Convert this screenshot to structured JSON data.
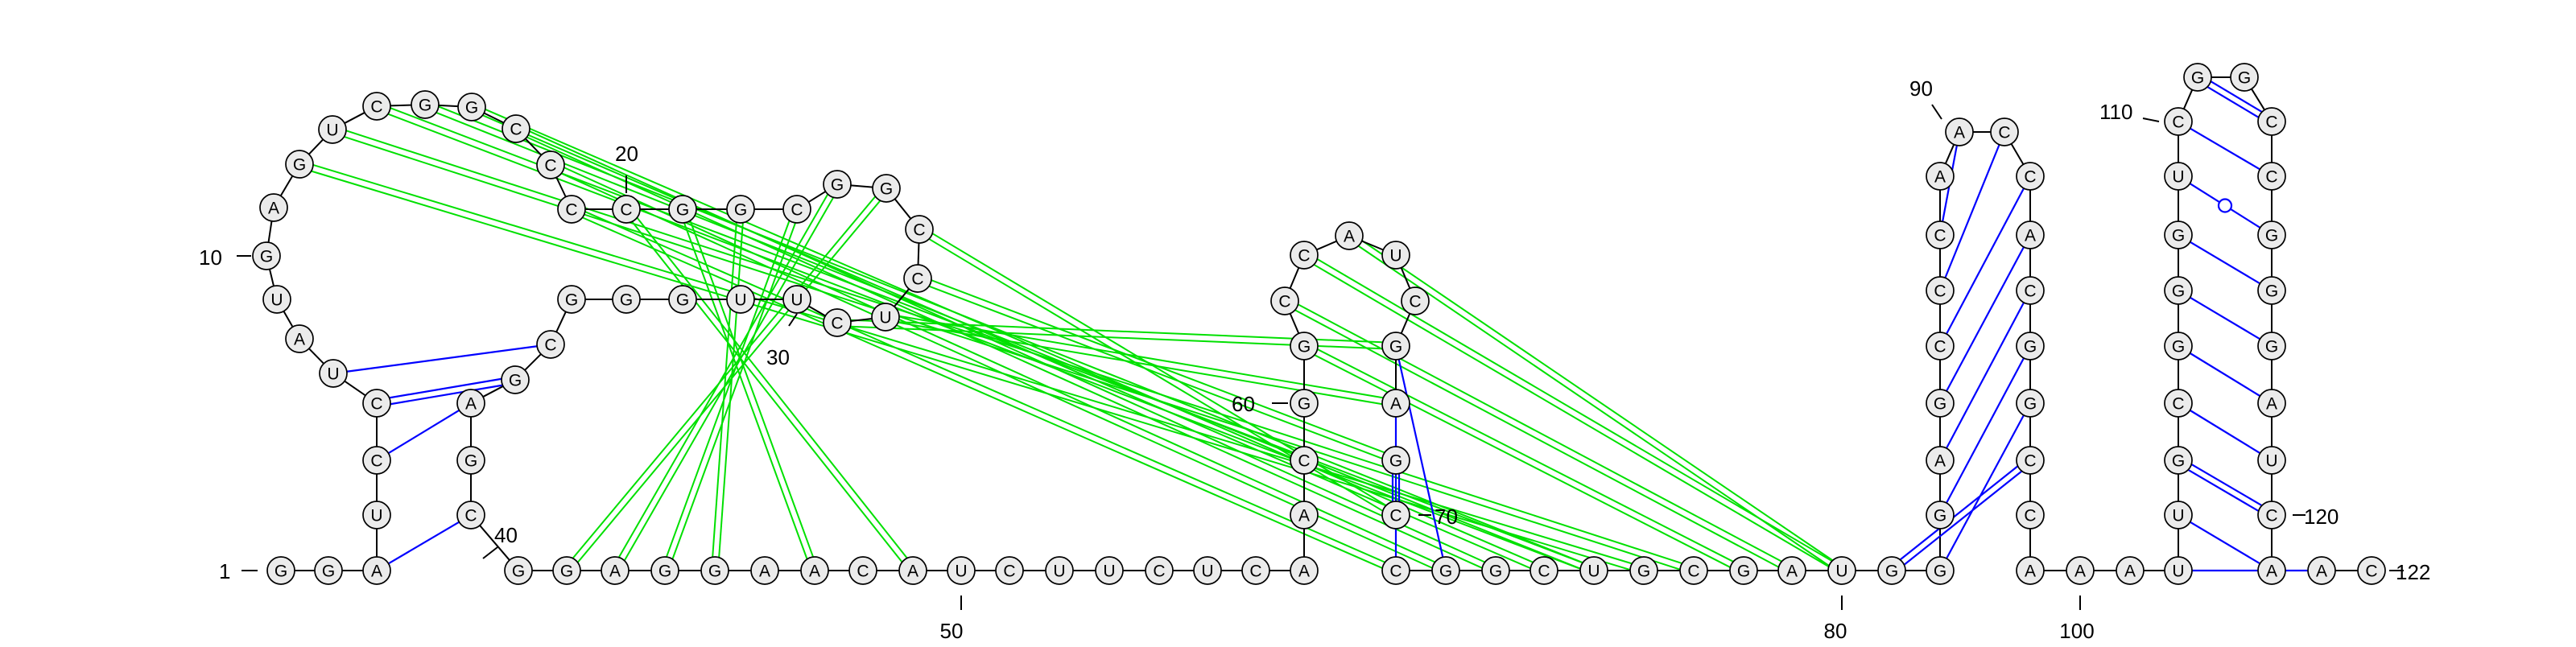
{
  "seq": "GGAUCCUAUGAGUCGGCCCCGGCGGCCUCUUGGGCGAGCGGAGGAACAUCUUCUCAACGGCCAUCGAGCCGGCUGCGAUGGGAGCCCAACCACGGCCAAAUUGCGGGUCGGCCGGGAUCAACC",
  "colors": {
    "backbone": "#000000",
    "pair": "#0000ff",
    "pseudoknot": "#00e000",
    "node_fill": "#ebebeb"
  },
  "pairs": [
    [
      3,
      39
    ],
    [
      5,
      37
    ],
    [
      6,
      36
    ],
    [
      7,
      35
    ],
    [
      66,
      71
    ],
    [
      67,
      70
    ],
    [
      68,
      69
    ],
    [
      80,
      96
    ],
    [
      81,
      95
    ],
    [
      82,
      94
    ],
    [
      83,
      93
    ],
    [
      84,
      92
    ],
    [
      85,
      91
    ],
    [
      86,
      90
    ],
    [
      87,
      89
    ],
    [
      101,
      121
    ],
    [
      102,
      120
    ],
    [
      103,
      119
    ],
    [
      104,
      118
    ],
    [
      105,
      117
    ],
    [
      106,
      116
    ],
    [
      107,
      115
    ],
    [
      108,
      114
    ],
    [
      109,
      113
    ],
    [
      110,
      112
    ]
  ],
  "pseudoknots": [
    [
      20,
      48
    ],
    [
      21,
      46
    ],
    [
      22,
      44
    ],
    [
      23,
      43
    ],
    [
      24,
      42
    ],
    [
      25,
      41
    ],
    [
      12,
      75
    ],
    [
      13,
      76
    ],
    [
      14,
      74
    ],
    [
      15,
      74
    ],
    [
      16,
      73
    ],
    [
      17,
      72
    ],
    [
      18,
      71
    ],
    [
      19,
      70
    ],
    [
      26,
      69
    ],
    [
      27,
      68
    ],
    [
      28,
      67
    ],
    [
      29,
      66
    ],
    [
      60,
      77
    ],
    [
      61,
      78
    ],
    [
      62,
      79
    ],
    [
      63,
      79
    ]
  ],
  "labels": [
    {
      "text": "1",
      "n": 1
    },
    {
      "text": "10",
      "n": 10
    },
    {
      "text": "20",
      "n": 20
    },
    {
      "text": "30",
      "n": 30
    },
    {
      "text": "40",
      "n": 40
    },
    {
      "text": "50",
      "n": 50
    },
    {
      "text": "60",
      "n": 60
    },
    {
      "text": "70",
      "n": 70
    },
    {
      "text": "80",
      "n": 80
    },
    {
      "text": "90",
      "n": 90
    },
    {
      "text": "100",
      "n": 100
    },
    {
      "text": "110",
      "n": 110
    },
    {
      "text": "120",
      "n": 120
    },
    {
      "text": "122",
      "n": 122
    }
  ]
}
